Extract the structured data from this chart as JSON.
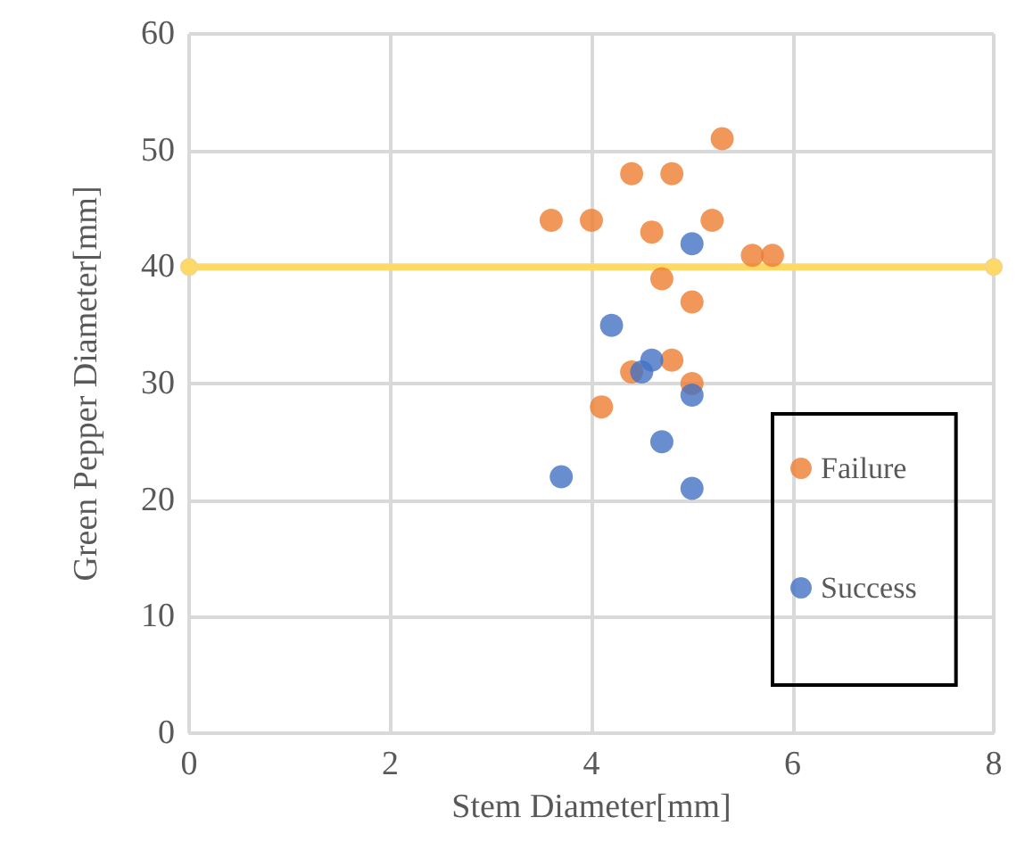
{
  "chart_data": {
    "type": "scatter",
    "xlabel": "Stem Diameter[mm]",
    "ylabel": "Green Pepper Diameter[mm]",
    "xlim": [
      0,
      8
    ],
    "xticks": [
      0,
      2,
      4,
      6,
      8
    ],
    "ylim": [
      0,
      60
    ],
    "yticks": [
      0,
      10,
      20,
      30,
      40,
      50,
      60
    ],
    "grid": true,
    "legend": "right",
    "marker": "circle",
    "series": [
      {
        "name": "Failure",
        "color": "#ed7d31",
        "x": [
          3.6,
          4.0,
          4.4,
          4.8,
          5.3,
          4.6,
          5.2,
          4.7,
          5.0,
          5.6,
          5.8,
          4.4,
          4.8,
          5.0,
          4.1
        ],
        "values": [
          44,
          44,
          48,
          48,
          51,
          43,
          44,
          39,
          37,
          41,
          41,
          31,
          32,
          30,
          28
        ]
      },
      {
        "name": "Success",
        "color": "#4472c4",
        "x": [
          5.0,
          4.2,
          4.6,
          4.5,
          5.0,
          4.7,
          3.7,
          5.0
        ],
        "values": [
          42,
          35,
          32,
          31,
          29,
          25,
          22,
          21
        ]
      },
      {
        "type": "line",
        "color": "#ffd966",
        "x": [
          0,
          8
        ],
        "values": [
          40,
          40
        ]
      }
    ]
  }
}
